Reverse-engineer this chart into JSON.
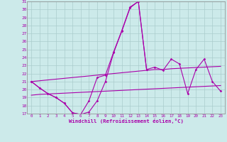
{
  "xlabel": "Windchill (Refroidissement éolien,°C)",
  "bg_color": "#cceaea",
  "grid_color": "#aacccc",
  "line_color": "#aa00aa",
  "x": [
    0,
    1,
    2,
    3,
    4,
    5,
    6,
    7,
    8,
    9,
    10,
    11,
    12,
    13,
    14,
    15,
    16,
    17,
    18,
    19,
    20,
    21,
    22,
    23
  ],
  "line_zigzag": [
    21.0,
    20.2,
    19.5,
    19.0,
    18.3,
    17.1,
    16.9,
    17.2,
    18.6,
    21.0,
    24.6,
    27.3,
    30.2,
    31.0,
    22.5,
    22.8,
    22.4,
    23.8,
    23.2,
    19.5,
    22.5,
    23.8,
    21.0,
    19.8
  ],
  "line_upper_partial": [
    21.0,
    20.2,
    19.5,
    19.0,
    18.3,
    17.1,
    16.9,
    18.6,
    21.5,
    21.8,
    24.7,
    27.4,
    30.3,
    31.0,
    22.5,
    null,
    null,
    null,
    null,
    null,
    null,
    null,
    null,
    null
  ],
  "line_upper_straight": [
    21.0,
    21.1,
    21.2,
    21.3,
    21.4,
    21.5,
    21.6,
    21.7,
    21.8,
    21.9,
    22.0,
    22.1,
    22.2,
    22.3,
    22.4,
    22.5,
    22.5,
    22.6,
    22.65,
    22.7,
    22.75,
    22.8,
    22.85,
    22.9
  ],
  "line_lower_straight": [
    19.3,
    19.4,
    19.45,
    19.5,
    19.55,
    19.6,
    19.65,
    19.7,
    19.75,
    19.8,
    19.85,
    19.9,
    19.95,
    20.0,
    20.05,
    20.1,
    20.15,
    20.2,
    20.25,
    20.3,
    20.35,
    20.4,
    20.45,
    20.5
  ],
  "ylim": [
    17,
    31
  ],
  "yticks": [
    17,
    18,
    19,
    20,
    21,
    22,
    23,
    24,
    25,
    26,
    27,
    28,
    29,
    30,
    31
  ],
  "xlim": [
    -0.5,
    23.5
  ],
  "xticks": [
    0,
    1,
    2,
    3,
    4,
    5,
    6,
    7,
    8,
    9,
    10,
    11,
    12,
    13,
    14,
    15,
    16,
    17,
    18,
    19,
    20,
    21,
    22,
    23
  ]
}
